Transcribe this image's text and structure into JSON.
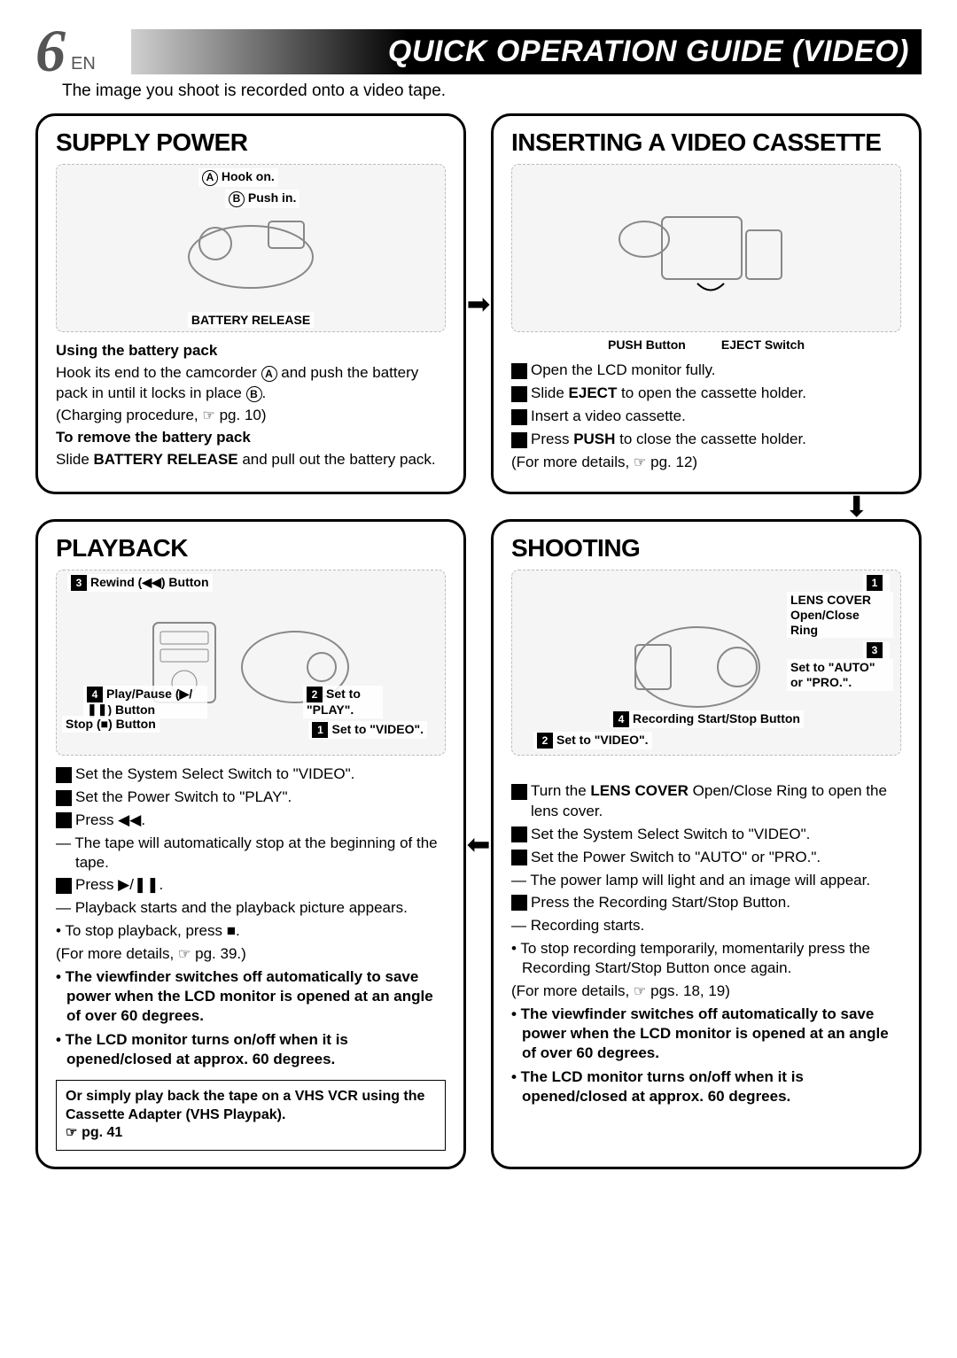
{
  "header": {
    "page_number": "6",
    "lang": "EN",
    "title": "QUICK OPERATION GUIDE (VIDEO)",
    "intro": "The image you shoot is recorded onto a video tape."
  },
  "colors": {
    "title_bar_gradient_start": "#d0d0d0",
    "title_bar_gradient_end": "#000000",
    "panel_border": "#000000",
    "page_num": "#555555"
  },
  "panels": {
    "supply_power": {
      "title": "SUPPLY POWER",
      "callouts": {
        "A": "Hook on.",
        "B": "Push in.",
        "battery_release": "BATTERY RELEASE"
      },
      "using_head": "Using the battery pack",
      "using_body_a": "Hook its end to the camcorder ",
      "using_body_b": " and push the battery pack in until it locks in place ",
      "using_body_c": ".",
      "charging": "(Charging procedure, ",
      "charging_pg": " pg. 10)",
      "remove_head": "To remove the battery pack",
      "remove_body_a": "Slide ",
      "remove_body_bold": "BATTERY RELEASE",
      "remove_body_b": " and pull out the battery pack."
    },
    "inserting": {
      "title": "INSERTING A VIDEO CASSETTE",
      "labels": {
        "push": "PUSH Button",
        "eject": "EJECT Switch"
      },
      "steps": [
        "Open the LCD monitor fully.",
        "Slide <b>EJECT</b> to open the cassette holder.",
        "Insert a video cassette.",
        "Press <b>PUSH</b> to close the cassette holder."
      ],
      "more_a": "(For more details, ",
      "more_b": " pg. 12)"
    },
    "playback": {
      "title": "PLAYBACK",
      "callouts": {
        "rewind": "Rewind (◀◀) Button",
        "playpause": "Play/Pause (▶/❚❚) Button",
        "stop": "Stop (■) Button",
        "set_video": "Set to \"VIDEO\".",
        "set_play": "Set to \"PLAY\"."
      },
      "steps": [
        "Set the System Select Switch to \"VIDEO\".",
        "Set the Power Switch to \"PLAY\".",
        "Press ◀◀.",
        "Press ▶/❚❚."
      ],
      "sub3": "— The tape will automatically stop at the beginning of the tape.",
      "sub4": "— Playback starts and the playback picture appears.",
      "stop_line": "• To stop playback, press ■.",
      "more_a": "(For more details, ",
      "more_b": " pg. 39.)",
      "bold_notes": [
        "• The viewfinder switches off automatically to save power when the LCD monitor is opened at an angle of over 60 degrees.",
        "• The LCD monitor turns on/off when it is opened/closed at approx. 60 degrees."
      ],
      "note_box_a": "Or simply play back the tape on a VHS VCR using the Cassette Adapter (VHS Playpak).",
      "note_box_b": " pg. 41"
    },
    "shooting": {
      "title": "SHOOTING",
      "callouts": {
        "lens": "LENS COVER Open/Close Ring",
        "auto": "Set to \"AUTO\" or \"PRO.\".",
        "rec": "Recording Start/Stop Button",
        "video": "Set to \"VIDEO\"."
      },
      "steps": [
        "Turn the <b>LENS COVER</b> Open/Close Ring to open the lens cover.",
        "Set the System Select Switch to \"VIDEO\".",
        "Set the Power Switch to \"AUTO\" or \"PRO.\".",
        "Press the Recording Start/Stop Button."
      ],
      "sub3": "— The power lamp will light and an image will appear.",
      "sub4": "— Recording starts.",
      "stop_line": "• To stop recording temporarily, momentarily press the Recording Start/Stop Button once again.",
      "more_a": "(For more details, ",
      "more_b": " pgs. 18, 19)",
      "bold_notes": [
        "• The viewfinder switches off automatically to save power when the LCD monitor is opened at an angle of over 60 degrees.",
        "• The LCD monitor turns on/off when it is opened/closed at approx. 60 degrees."
      ]
    }
  }
}
